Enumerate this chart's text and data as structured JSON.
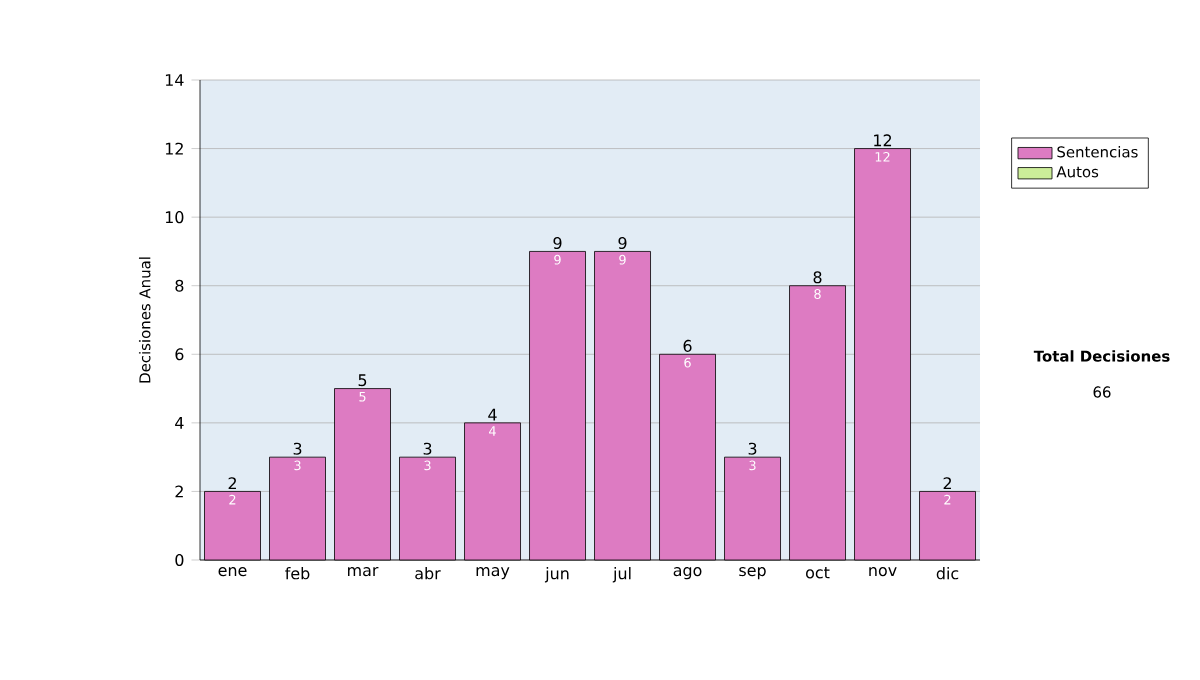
{
  "chart_data": {
    "type": "bar",
    "stacked": true,
    "ylabel": "Decisiones Anual",
    "categories": [
      "ene",
      "feb",
      "mar",
      "abr",
      "may",
      "jun",
      "jul",
      "ago",
      "sep",
      "oct",
      "nov",
      "dic"
    ],
    "series": [
      {
        "name": "Sentencias",
        "color": "#dd7bc2",
        "values": [
          2,
          3,
          5,
          3,
          4,
          9,
          9,
          6,
          3,
          8,
          12,
          2
        ],
        "value_labels": [
          "2",
          "3",
          "5",
          "3",
          "4",
          "9",
          "9",
          "6",
          "3",
          "8",
          "12",
          "2"
        ]
      },
      {
        "name": "Autos",
        "color": "#ccee99",
        "values": [
          0,
          0,
          0,
          0,
          0,
          0,
          0,
          0,
          0,
          0,
          0,
          0
        ]
      }
    ],
    "totals": [
      "2",
      "3",
      "5",
      "3",
      "4",
      "9",
      "9",
      "6",
      "3",
      "8",
      "12",
      "2"
    ],
    "ylim": [
      0,
      14
    ],
    "yticks": [
      0,
      2,
      4,
      6,
      8,
      10,
      12,
      14
    ],
    "grid": "y",
    "legend": "right",
    "annotations": [
      "Total Decisiones",
      "66"
    ]
  }
}
